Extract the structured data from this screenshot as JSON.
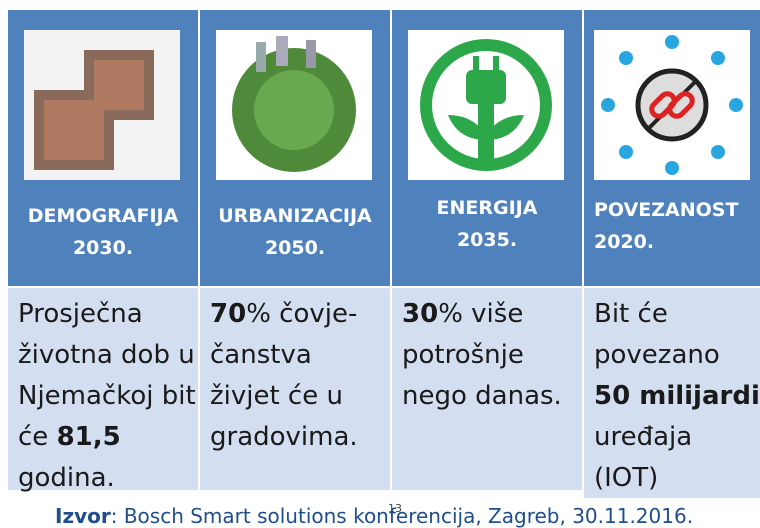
{
  "table": {
    "headers": [
      {
        "title": "DEMOGRAFIJA",
        "year": "2030."
      },
      {
        "title": "URBANIZACIJA",
        "year": "2050."
      },
      {
        "title": "ENERGIJA",
        "year": "2035."
      },
      {
        "title": "POVEZANOST",
        "year": "2020."
      }
    ],
    "cells": [
      [
        "Prosječna životna dob u Njemačkoj bit će ",
        "81,5",
        " godina."
      ],
      [
        "70",
        "% čovje- čanstva živjet će u gradovima."
      ],
      [
        "30",
        "% više potrošnje nego danas."
      ],
      [
        "Bit će povezano ",
        "50 milijardi",
        " uređaja (IOT)"
      ]
    ]
  },
  "footer": {
    "label": "Izvor",
    "text": ": Bosch Smart solutions konferencija, Zagreb, 30.11.2016."
  },
  "page_number": "13"
}
